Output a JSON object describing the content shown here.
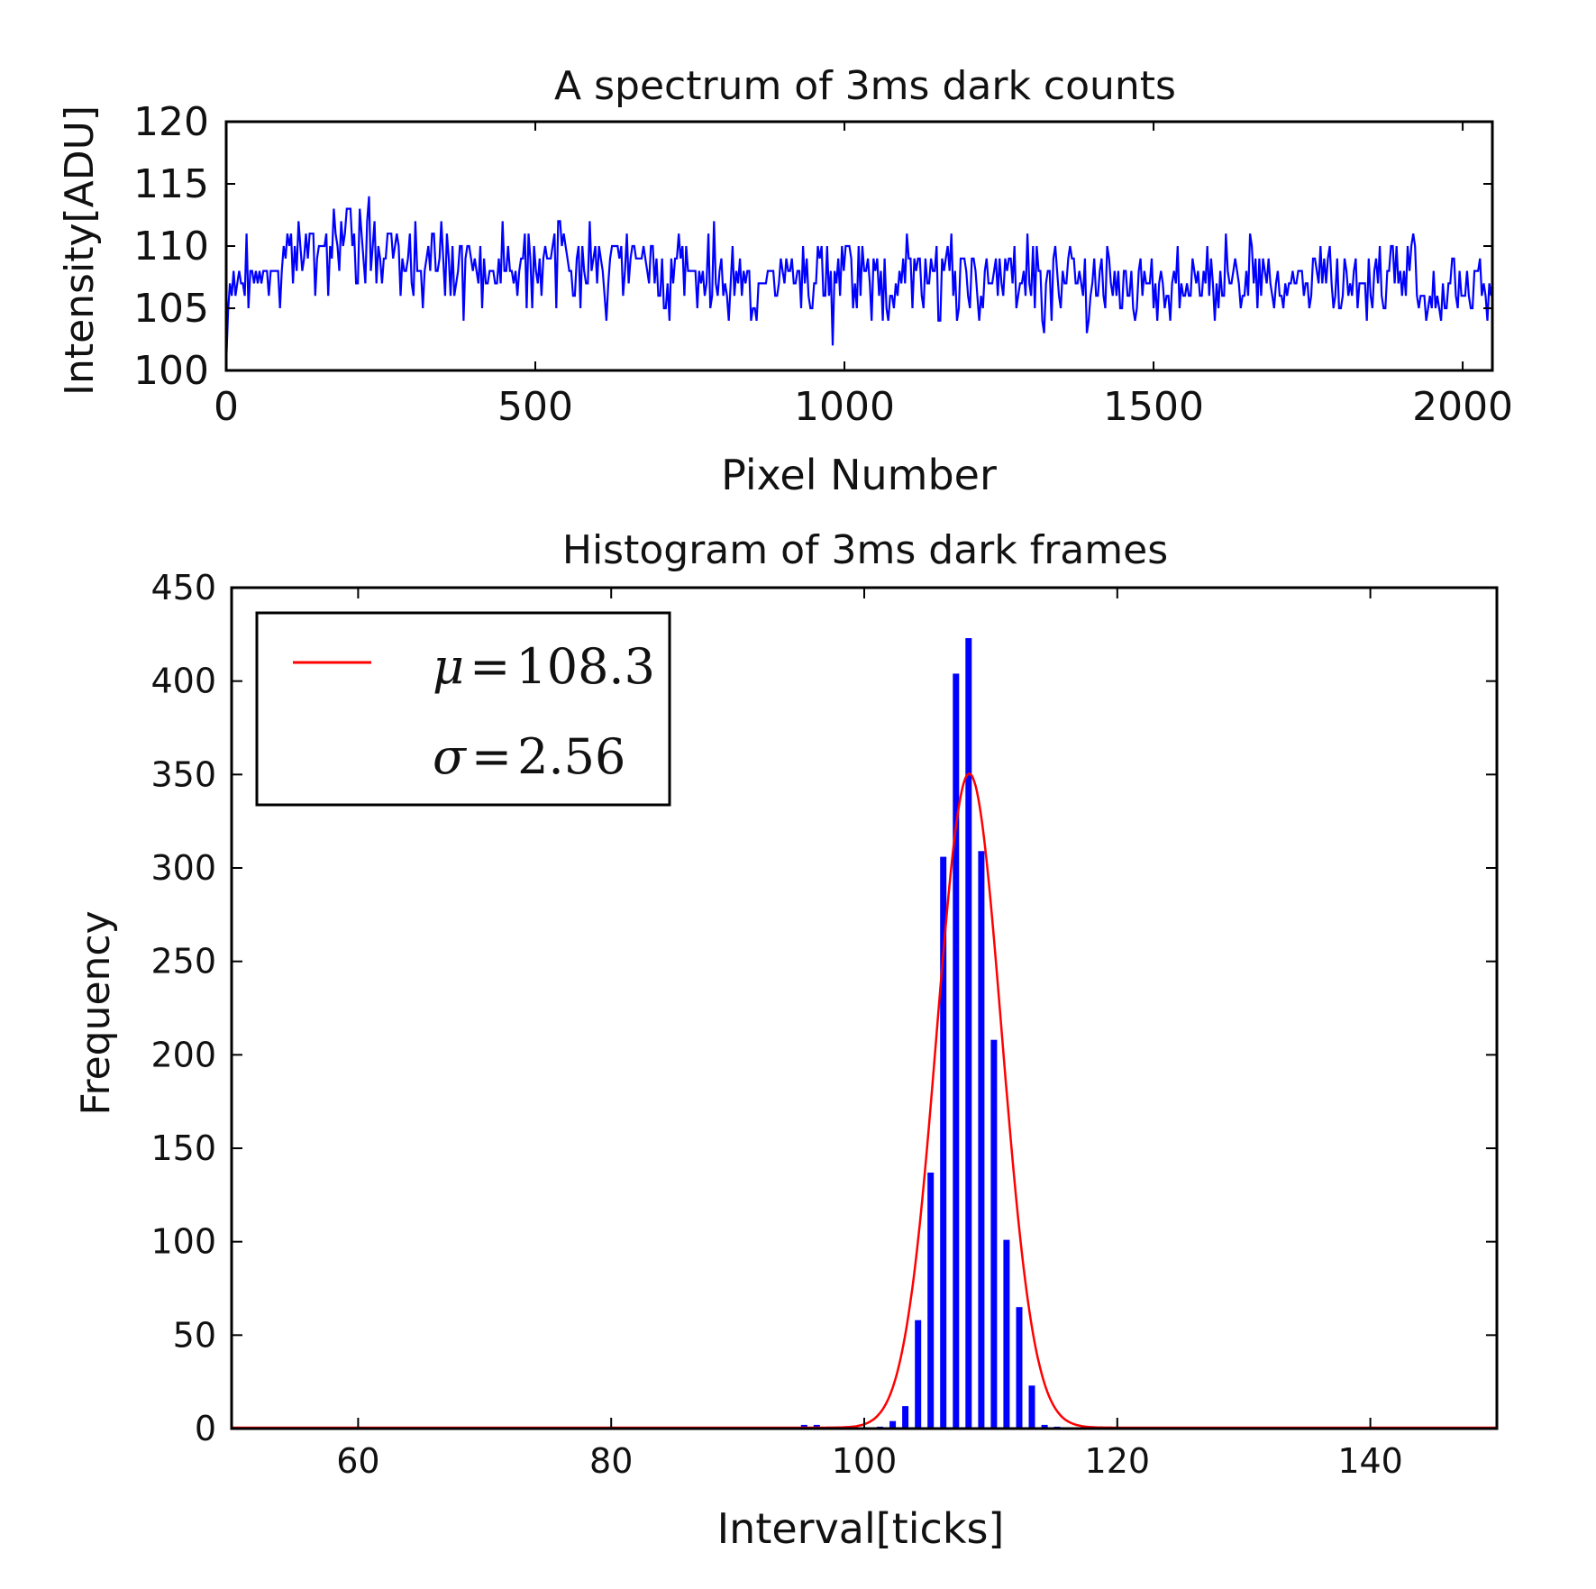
{
  "chart_data": [
    {
      "type": "line",
      "title": "A spectrum of 3ms dark counts",
      "xlabel": "Pixel Number",
      "ylabel": "Intensity[ADU]",
      "xlim": [
        0,
        2048
      ],
      "ylim": [
        100,
        120
      ],
      "xticks": [
        "0",
        "500",
        "1000",
        "1500",
        "2000"
      ],
      "yticks": [
        "100",
        "105",
        "110",
        "115",
        "120"
      ],
      "line_color": "#0000ff",
      "series": [
        {
          "x": [
            0,
            2,
            6,
            10,
            30,
            60,
            100,
            150,
            200,
            250,
            300,
            400,
            500,
            600,
            700,
            800,
            900,
            1000,
            1060,
            1200,
            1400,
            1600,
            1760,
            1900,
            2000,
            2040,
            2048
          ],
          "values": [
            100.5,
            104,
            107,
            106,
            108,
            107.5,
            109,
            110,
            110.5,
            109.5,
            109,
            108.5,
            109,
            108.5,
            108,
            107.5,
            107,
            107.5,
            107,
            107.5,
            107,
            107,
            107.5,
            107,
            106.5,
            106,
            106
          ]
        }
      ],
      "grid": false,
      "legend": "none"
    },
    {
      "type": "bar",
      "title": "Histogram of 3ms dark frames",
      "xlabel": "Interval[ticks]",
      "ylabel": "Frequency",
      "xlim": [
        50,
        150
      ],
      "ylim": [
        0,
        450
      ],
      "xticks": [
        "60",
        "80",
        "100",
        "120",
        "140"
      ],
      "yticks": [
        "0",
        "50",
        "100",
        "150",
        "200",
        "250",
        "300",
        "350",
        "400",
        "450"
      ],
      "bar_color": "#0000ff",
      "fit_color": "#ff0000",
      "bins": [
        95,
        96,
        101,
        102,
        103,
        104,
        105,
        106,
        107,
        108,
        109,
        110,
        111,
        112,
        113,
        114,
        115
      ],
      "values": [
        2,
        2,
        1,
        4,
        12,
        58,
        137,
        306,
        404,
        423,
        309,
        208,
        101,
        65,
        23,
        2,
        1
      ],
      "fit": {
        "mu": 108.3,
        "sigma": 2.56,
        "peak": 350
      },
      "legend_entries": [
        {
          "symbol": "μ",
          "eq": "=",
          "value": "108.3"
        },
        {
          "symbol": "σ",
          "eq": "=",
          "value": "2.56"
        }
      ],
      "legend_position": "upper-left",
      "grid": false
    }
  ]
}
